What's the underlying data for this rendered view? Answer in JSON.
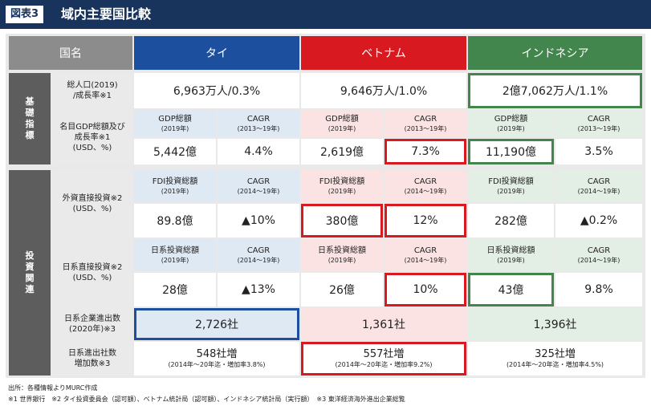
{
  "figure": {
    "label": "図表3",
    "title": "域内主要国比較"
  },
  "columns": {
    "name": "国名",
    "thailand": "タイ",
    "vietnam": "ベトナム",
    "indonesia": "インドネシア"
  },
  "groups": {
    "basic": [
      "基",
      "礎",
      "指",
      "標"
    ],
    "invest": [
      "投",
      "資",
      "関",
      "連"
    ]
  },
  "rows": {
    "population": {
      "label": "総人口(2019)",
      "label2": "/成長率※1",
      "thailand": "6,963万人/0.3%",
      "vietnam": "9,646万人/1.0%",
      "indonesia": "2億7,062万人/1.1%"
    },
    "gdp": {
      "label": "名目GDP総額及び",
      "label2": "成長率※1",
      "label3": "(USD、%)",
      "h1": "GDP総額",
      "h1s": "(2019年)",
      "h2": "CAGR",
      "h2s": "(2013～19年)",
      "thailand": {
        "total": "5,442億",
        "cagr": "4.4%"
      },
      "vietnam": {
        "total": "2,619億",
        "cagr": "7.3%"
      },
      "indonesia": {
        "total": "11,190億",
        "cagr": "3.5%"
      }
    },
    "fdi": {
      "label": "外資直接投資※2",
      "label2": "(USD、%)",
      "h1": "FDI投資総額",
      "h1s": "(2019年)",
      "h2": "CAGR",
      "h2s": "(2014～19年)",
      "thailand": {
        "total": "89.8億",
        "cagr": "▲10%"
      },
      "vietnam": {
        "total": "380億",
        "cagr": "12%"
      },
      "indonesia": {
        "total": "282億",
        "cagr": "▲0.2%"
      }
    },
    "jdi": {
      "label": "日系直接投資※2",
      "label2": "(USD、%)",
      "h1": "日系投資総額",
      "h1s": "(2019年)",
      "h2": "CAGR",
      "h2s": "(2014～19年)",
      "thailand": {
        "total": "28億",
        "cagr": "▲13%"
      },
      "vietnam": {
        "total": "26億",
        "cagr": "10%"
      },
      "indonesia": {
        "total": "43億",
        "cagr": "9.8%"
      }
    },
    "companies": {
      "label": "日系企業進出数",
      "label2": "(2020年)※3",
      "thailand": "2,726社",
      "vietnam": "1,361社",
      "indonesia": "1,396社"
    },
    "increase": {
      "label": "日系進出社数",
      "label2": "増加数※3",
      "thailand": "548社増",
      "thailand_note": "(2014年～20年迄・増加率3.8%)",
      "vietnam": "557社増",
      "vietnam_note": "(2014年～20年迄・増加率9.2%)",
      "indonesia": "325社増",
      "indonesia_note": "(2014年～20年迄・増加率4.5%)"
    }
  },
  "footnotes": {
    "source": "出所：各種情報よりMURC作成",
    "notes": "※1 世界銀行　※2 タイ投資委員会（認可額）、ベトナム統計局（認可額）、インドネシア統計局（実行額）　※3 東洋経済海外進出企業総覧"
  },
  "colors": {
    "navy": "#18335c",
    "thailand": "#1c4f9e",
    "vietnam": "#d81920",
    "indonesia": "#42864d"
  }
}
